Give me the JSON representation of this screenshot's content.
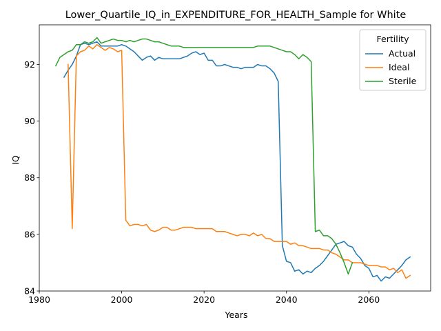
{
  "chart_data": {
    "type": "line",
    "title": "Lower_Quartile_IQ_in_EXPENDITURE_FOR_HEALTH_Sample for White",
    "xlabel": "Years",
    "ylabel": "IQ",
    "xlim": [
      1980,
      2075
    ],
    "ylim": [
      84,
      93.4
    ],
    "xticks": [
      1980,
      2000,
      2020,
      2040,
      2060
    ],
    "yticks": [
      84,
      86,
      88,
      90,
      92
    ],
    "grid": false,
    "legend": {
      "title": "Fertility",
      "position": "top-right"
    },
    "series": [
      {
        "name": "Actual",
        "color": "#1f77b4",
        "points": [
          [
            1986,
            91.55
          ],
          [
            1987,
            91.8
          ],
          [
            1988,
            92.0
          ],
          [
            1989,
            92.3
          ],
          [
            1990,
            92.7
          ],
          [
            1991,
            92.75
          ],
          [
            1992,
            92.7
          ],
          [
            1993,
            92.75
          ],
          [
            1994,
            92.8
          ],
          [
            1995,
            92.65
          ],
          [
            1996,
            92.65
          ],
          [
            1997,
            92.65
          ],
          [
            1998,
            92.65
          ],
          [
            1999,
            92.65
          ],
          [
            2000,
            92.7
          ],
          [
            2001,
            92.65
          ],
          [
            2002,
            92.55
          ],
          [
            2003,
            92.45
          ],
          [
            2004,
            92.3
          ],
          [
            2005,
            92.15
          ],
          [
            2006,
            92.25
          ],
          [
            2007,
            92.3
          ],
          [
            2008,
            92.15
          ],
          [
            2009,
            92.25
          ],
          [
            2010,
            92.2
          ],
          [
            2011,
            92.2
          ],
          [
            2012,
            92.2
          ],
          [
            2013,
            92.2
          ],
          [
            2014,
            92.2
          ],
          [
            2015,
            92.25
          ],
          [
            2016,
            92.3
          ],
          [
            2017,
            92.4
          ],
          [
            2018,
            92.45
          ],
          [
            2019,
            92.35
          ],
          [
            2020,
            92.4
          ],
          [
            2021,
            92.15
          ],
          [
            2022,
            92.15
          ],
          [
            2023,
            91.95
          ],
          [
            2024,
            91.95
          ],
          [
            2025,
            92.0
          ],
          [
            2026,
            91.95
          ],
          [
            2027,
            91.9
          ],
          [
            2028,
            91.9
          ],
          [
            2029,
            91.85
          ],
          [
            2030,
            91.9
          ],
          [
            2031,
            91.9
          ],
          [
            2032,
            91.9
          ],
          [
            2033,
            92.0
          ],
          [
            2034,
            91.95
          ],
          [
            2035,
            91.95
          ],
          [
            2036,
            91.85
          ],
          [
            2037,
            91.7
          ],
          [
            2038,
            91.4
          ],
          [
            2039,
            85.6
          ],
          [
            2040,
            85.05
          ],
          [
            2041,
            85.0
          ],
          [
            2042,
            84.7
          ],
          [
            2043,
            84.75
          ],
          [
            2044,
            84.6
          ],
          [
            2045,
            84.7
          ],
          [
            2046,
            84.65
          ],
          [
            2047,
            84.8
          ],
          [
            2048,
            84.9
          ],
          [
            2049,
            85.05
          ],
          [
            2050,
            85.25
          ],
          [
            2051,
            85.45
          ],
          [
            2052,
            85.65
          ],
          [
            2053,
            85.7
          ],
          [
            2054,
            85.75
          ],
          [
            2055,
            85.6
          ],
          [
            2056,
            85.55
          ],
          [
            2057,
            85.3
          ],
          [
            2058,
            85.15
          ],
          [
            2059,
            84.9
          ],
          [
            2060,
            84.8
          ],
          [
            2061,
            84.5
          ],
          [
            2062,
            84.55
          ],
          [
            2063,
            84.35
          ],
          [
            2064,
            84.5
          ],
          [
            2065,
            84.45
          ],
          [
            2066,
            84.6
          ],
          [
            2067,
            84.75
          ],
          [
            2068,
            84.9
          ],
          [
            2069,
            85.1
          ],
          [
            2070,
            85.2
          ]
        ]
      },
      {
        "name": "Ideal",
        "color": "#ff7f0e",
        "points": [
          [
            1987,
            92.0
          ],
          [
            1988,
            86.2
          ],
          [
            1989,
            92.3
          ],
          [
            1990,
            92.45
          ],
          [
            1991,
            92.5
          ],
          [
            1992,
            92.65
          ],
          [
            1993,
            92.55
          ],
          [
            1994,
            92.7
          ],
          [
            1995,
            92.6
          ],
          [
            1996,
            92.5
          ],
          [
            1997,
            92.6
          ],
          [
            1998,
            92.55
          ],
          [
            1999,
            92.45
          ],
          [
            2000,
            92.5
          ],
          [
            2001,
            86.5
          ],
          [
            2002,
            86.3
          ],
          [
            2003,
            86.35
          ],
          [
            2004,
            86.35
          ],
          [
            2005,
            86.3
          ],
          [
            2006,
            86.35
          ],
          [
            2007,
            86.15
          ],
          [
            2008,
            86.1
          ],
          [
            2009,
            86.15
          ],
          [
            2010,
            86.25
          ],
          [
            2011,
            86.25
          ],
          [
            2012,
            86.15
          ],
          [
            2013,
            86.15
          ],
          [
            2014,
            86.2
          ],
          [
            2015,
            86.25
          ],
          [
            2016,
            86.25
          ],
          [
            2017,
            86.25
          ],
          [
            2018,
            86.2
          ],
          [
            2019,
            86.2
          ],
          [
            2020,
            86.2
          ],
          [
            2021,
            86.2
          ],
          [
            2022,
            86.2
          ],
          [
            2023,
            86.1
          ],
          [
            2024,
            86.1
          ],
          [
            2025,
            86.1
          ],
          [
            2026,
            86.05
          ],
          [
            2027,
            86.0
          ],
          [
            2028,
            85.95
          ],
          [
            2029,
            86.0
          ],
          [
            2030,
            86.0
          ],
          [
            2031,
            85.95
          ],
          [
            2032,
            86.05
          ],
          [
            2033,
            85.95
          ],
          [
            2034,
            86.0
          ],
          [
            2035,
            85.85
          ],
          [
            2036,
            85.85
          ],
          [
            2037,
            85.75
          ],
          [
            2038,
            85.75
          ],
          [
            2039,
            85.75
          ],
          [
            2040,
            85.75
          ],
          [
            2041,
            85.65
          ],
          [
            2042,
            85.7
          ],
          [
            2043,
            85.6
          ],
          [
            2044,
            85.6
          ],
          [
            2045,
            85.55
          ],
          [
            2046,
            85.5
          ],
          [
            2047,
            85.5
          ],
          [
            2048,
            85.5
          ],
          [
            2049,
            85.45
          ],
          [
            2050,
            85.45
          ],
          [
            2051,
            85.35
          ],
          [
            2052,
            85.3
          ],
          [
            2053,
            85.2
          ],
          [
            2054,
            85.1
          ],
          [
            2055,
            85.1
          ],
          [
            2056,
            85.0
          ],
          [
            2057,
            85.0
          ],
          [
            2058,
            85.0
          ],
          [
            2059,
            84.95
          ],
          [
            2060,
            84.9
          ],
          [
            2061,
            84.9
          ],
          [
            2062,
            84.9
          ],
          [
            2063,
            84.85
          ],
          [
            2064,
            84.85
          ],
          [
            2065,
            84.75
          ],
          [
            2066,
            84.8
          ],
          [
            2067,
            84.65
          ],
          [
            2068,
            84.75
          ],
          [
            2069,
            84.45
          ],
          [
            2070,
            84.55
          ]
        ]
      },
      {
        "name": "Sterile",
        "color": "#2ca02c",
        "points": [
          [
            1984,
            91.95
          ],
          [
            1985,
            92.25
          ],
          [
            1986,
            92.35
          ],
          [
            1987,
            92.45
          ],
          [
            1988,
            92.5
          ],
          [
            1989,
            92.7
          ],
          [
            1990,
            92.7
          ],
          [
            1991,
            92.8
          ],
          [
            1992,
            92.75
          ],
          [
            1993,
            92.8
          ],
          [
            1994,
            92.95
          ],
          [
            1995,
            92.75
          ],
          [
            1996,
            92.8
          ],
          [
            1997,
            92.85
          ],
          [
            1998,
            92.9
          ],
          [
            1999,
            92.85
          ],
          [
            2000,
            92.85
          ],
          [
            2001,
            92.8
          ],
          [
            2002,
            92.85
          ],
          [
            2003,
            92.8
          ],
          [
            2004,
            92.85
          ],
          [
            2005,
            92.9
          ],
          [
            2006,
            92.9
          ],
          [
            2007,
            92.85
          ],
          [
            2008,
            92.8
          ],
          [
            2009,
            92.8
          ],
          [
            2010,
            92.75
          ],
          [
            2011,
            92.7
          ],
          [
            2012,
            92.65
          ],
          [
            2013,
            92.65
          ],
          [
            2014,
            92.65
          ],
          [
            2015,
            92.6
          ],
          [
            2016,
            92.6
          ],
          [
            2017,
            92.6
          ],
          [
            2018,
            92.6
          ],
          [
            2019,
            92.6
          ],
          [
            2020,
            92.6
          ],
          [
            2021,
            92.6
          ],
          [
            2022,
            92.6
          ],
          [
            2023,
            92.6
          ],
          [
            2024,
            92.6
          ],
          [
            2025,
            92.6
          ],
          [
            2026,
            92.6
          ],
          [
            2027,
            92.6
          ],
          [
            2028,
            92.6
          ],
          [
            2029,
            92.6
          ],
          [
            2030,
            92.6
          ],
          [
            2031,
            92.6
          ],
          [
            2032,
            92.6
          ],
          [
            2033,
            92.65
          ],
          [
            2034,
            92.65
          ],
          [
            2035,
            92.65
          ],
          [
            2036,
            92.65
          ],
          [
            2037,
            92.6
          ],
          [
            2038,
            92.55
          ],
          [
            2039,
            92.5
          ],
          [
            2040,
            92.45
          ],
          [
            2041,
            92.45
          ],
          [
            2042,
            92.35
          ],
          [
            2043,
            92.2
          ],
          [
            2044,
            92.35
          ],
          [
            2045,
            92.25
          ],
          [
            2046,
            92.1
          ],
          [
            2047,
            86.1
          ],
          [
            2048,
            86.15
          ],
          [
            2049,
            85.95
          ],
          [
            2050,
            85.95
          ],
          [
            2051,
            85.85
          ],
          [
            2052,
            85.65
          ],
          [
            2053,
            85.35
          ],
          [
            2054,
            85.0
          ],
          [
            2055,
            84.6
          ],
          [
            2056,
            85.0
          ]
        ]
      }
    ]
  }
}
